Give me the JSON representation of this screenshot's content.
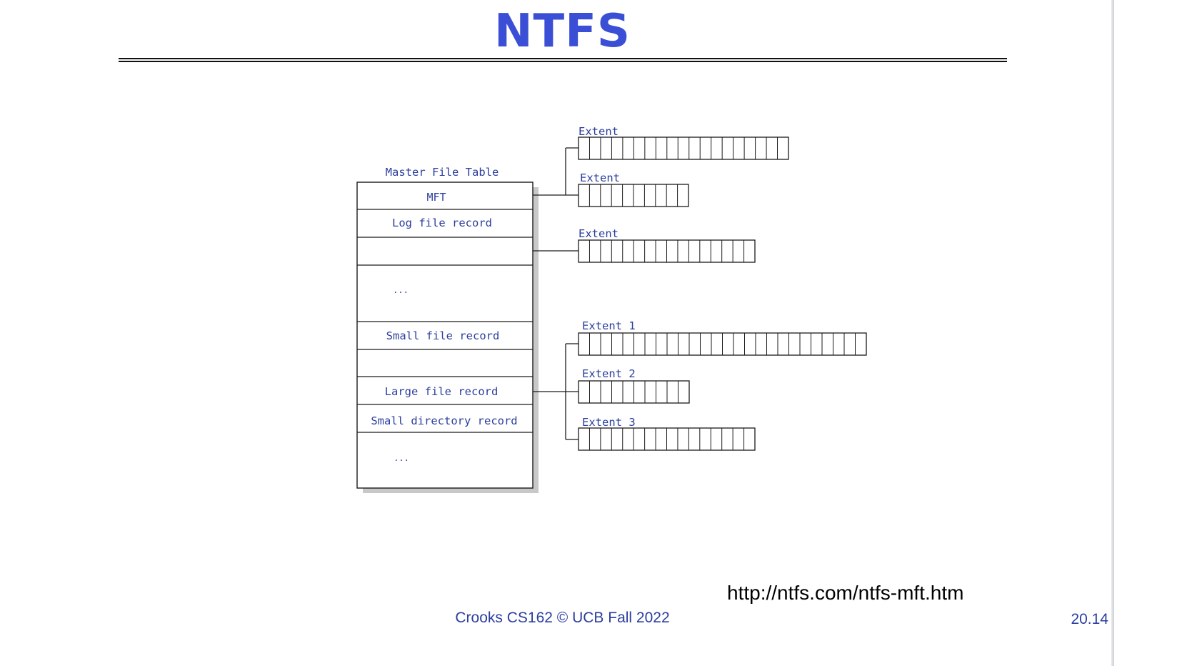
{
  "slide": {
    "title": "NTFS",
    "source_url": "http://ntfs.com/ntfs-mft.htm",
    "footer": "Crooks CS162 © UCB Fall 2022",
    "page_number": "20.14"
  },
  "diagram": {
    "table_title": "Master File Table",
    "records": [
      {
        "label": "MFT"
      },
      {
        "label": "Log file record"
      },
      {
        "label": ""
      },
      {
        "label": "..."
      },
      {
        "label": "Small file record"
      },
      {
        "label": ""
      },
      {
        "label": "Large file record"
      },
      {
        "label": "Small directory record"
      },
      {
        "label": "..."
      }
    ],
    "extents": [
      {
        "label": "Extent",
        "cells": 19
      },
      {
        "label": "Extent",
        "cells": 10
      },
      {
        "label": "Extent",
        "cells": 16
      },
      {
        "label": "Extent 1",
        "cells": 26
      },
      {
        "label": "Extent 2",
        "cells": 10
      },
      {
        "label": "Extent 3",
        "cells": 16
      }
    ]
  },
  "colors": {
    "title": "#3a4fd6",
    "diagram_text": "#2b3e9e",
    "line": "#1a1a1a",
    "shadow": "#c8c8c8"
  }
}
